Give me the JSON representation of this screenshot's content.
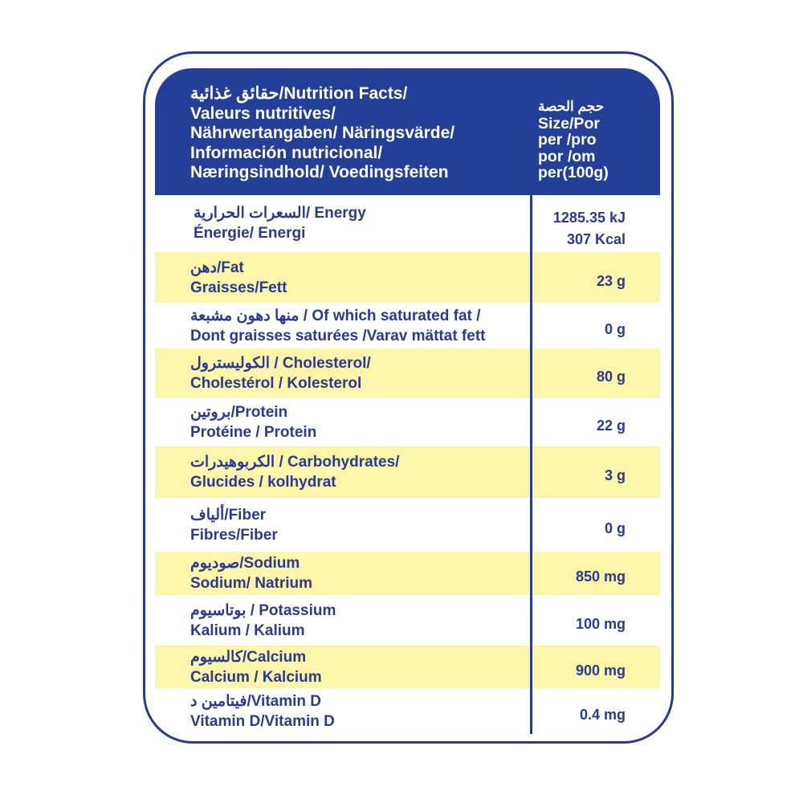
{
  "header": {
    "title_arabic": "حقائق غذائية",
    "title_lines": [
      "/Nutrition Facts/",
      "Valeurs nutritives/",
      "Nährwertangaben/ Näringsvärde/",
      "Información nutricional/",
      "Næringsindhold/ Voedingsfeiten"
    ],
    "column_arabic": "حجم الحصة",
    "column_lines": [
      "Size/Por",
      "per /pro",
      "por /om",
      "per(100g)"
    ]
  },
  "rows": [
    {
      "arabic": "السعرات الحرارية",
      "line1": "/ Energy",
      "line2": "Énergie/ Energi",
      "values": [
        "1285.35 kJ",
        "307 Kcal"
      ],
      "highlight": false
    },
    {
      "arabic": "دهن",
      "line1": "/Fat",
      "line2": "Graisses/Fett",
      "values": [
        "23 g"
      ],
      "highlight": true
    },
    {
      "arabic": "منها دهون مشبعة",
      "line1": " / Of which saturated fat /",
      "line2": "Dont graisses saturées /Varav mättat fett",
      "values": [
        "0 g"
      ],
      "highlight": false
    },
    {
      "arabic": "الكوليسترول",
      "line1": " / Cholesterol/",
      "line2": "Cholestérol / Kolesterol",
      "values": [
        "80 g"
      ],
      "highlight": true
    },
    {
      "arabic": "بروتين",
      "line1": "/Protein",
      "line2": "Protéine / Protein",
      "values": [
        "22 g"
      ],
      "highlight": false
    },
    {
      "arabic": "الكربوهيدرات",
      "line1": " / Carbohydrates/",
      "line2": "Glucides / kolhydrat",
      "values": [
        "3 g"
      ],
      "highlight": true
    },
    {
      "arabic": "ألياف",
      "line1": "/Fiber",
      "line2": "Fibres/Fiber",
      "values": [
        "0 g"
      ],
      "highlight": false
    },
    {
      "arabic": "صوديوم",
      "line1": "/Sodium",
      "line2": "Sodium/ Natrium",
      "values": [
        "850 mg"
      ],
      "highlight": true
    },
    {
      "arabic": "بوتاسيوم",
      "line1": " / Potassium",
      "line2": "Kalium / Kalium",
      "values": [
        "100 mg"
      ],
      "highlight": false
    },
    {
      "arabic": "كالسيوم",
      "line1": "/Calcium",
      "line2": "Calcium / Kalcium",
      "values": [
        "900 mg"
      ],
      "highlight": true
    },
    {
      "arabic": "فيتامين د",
      "line1": "/Vitamin D",
      "line2": "Vitamin D/Vitamin D",
      "values": [
        "0.4 mg"
      ],
      "highlight": false
    }
  ],
  "colors": {
    "blue": "#243f98",
    "text": "#2b3990",
    "highlight": "#fbf6aa"
  }
}
